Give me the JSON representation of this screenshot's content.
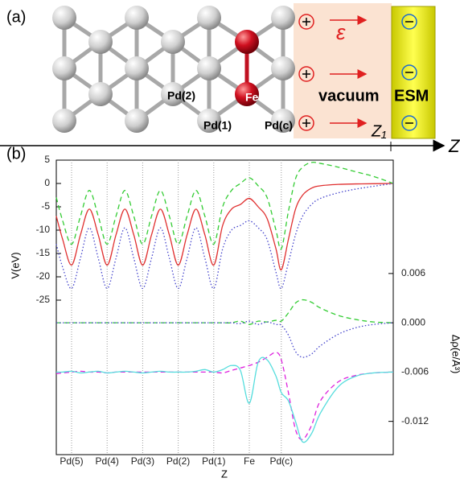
{
  "panel_a": {
    "label": "(a)",
    "pd2": "Pd(2)",
    "fe": "Fe",
    "pd1": "Pd(1)",
    "pdc": "Pd(c)",
    "vacuum": "vacuum",
    "esm": "ESM",
    "epsilon": "ε",
    "z1": "Z₁",
    "z_axis": "Z"
  },
  "chart_data": {
    "type": "line",
    "panel_label": "(b)",
    "x_label": "Z",
    "y_label": "V(eV)",
    "y2_label": "Δρ(e/Å³)",
    "x": [
      -0.43,
      -0.25,
      0,
      0.25,
      0.5,
      0.75,
      1,
      1.25,
      1.5,
      1.75,
      2,
      2.25,
      2.5,
      2.75,
      3,
      3.25,
      3.5,
      3.75,
      4,
      4.25,
      4.5,
      4.75,
      5,
      5.25,
      5.5,
      5.75,
      5.9,
      6.1,
      6.3,
      6.5,
      6.75,
      7,
      7.5,
      8,
      8.5,
      9.05
    ],
    "xlim": [
      -0.43,
      9.05
    ],
    "xticks": [
      {
        "value": 0,
        "label": "Pd(5)"
      },
      {
        "value": 1,
        "label": "Pd(4)"
      },
      {
        "value": 2,
        "label": "Pd(3)"
      },
      {
        "value": 3,
        "label": "Pd(2)"
      },
      {
        "value": 4,
        "label": "Pd(1)"
      },
      {
        "value": 5,
        "label": "Fe"
      },
      {
        "value": 5.9,
        "label": "Pd(c)"
      }
    ],
    "ylim": [
      -58.1,
      5
    ],
    "yticks": [
      5,
      0,
      -5,
      -10,
      -15,
      -20,
      -25
    ],
    "y2lim": [
      -0.01605,
      0.0198
    ],
    "y2ticks": [
      {
        "value": 0.006,
        "label": "0.006"
      },
      {
        "value": 0,
        "label": "0.000"
      },
      {
        "value": -0.006,
        "label": "-0.006"
      },
      {
        "value": -0.012,
        "label": "-0.012"
      }
    ],
    "grid": true,
    "series": [
      {
        "color": "#e03030",
        "dash": "none",
        "values": [
          -7,
          -12,
          -17.5,
          -11,
          -5.5,
          -11,
          -17.5,
          -11,
          -5.5,
          -11,
          -17.5,
          -11,
          -5.5,
          -11,
          -17.5,
          -11,
          -5.5,
          -11,
          -17.5,
          -9,
          -5.5,
          -4.5,
          -3.2,
          -5,
          -7.5,
          -14,
          -18.5,
          -12,
          -5.5,
          -2.5,
          -1,
          -0.5,
          -0.2,
          -0.1,
          -0.05,
          0
        ]
      },
      {
        "color": "#33cc33",
        "dash": "6 4",
        "values": [
          -3,
          -8,
          -13,
          -7,
          -1.5,
          -7,
          -13,
          -7,
          -1.5,
          -7,
          -13,
          -7,
          -1.5,
          -7,
          -13,
          -7,
          -1.5,
          -7,
          -13,
          -5,
          -1.5,
          0,
          1.2,
          -0.5,
          -3,
          -10,
          -14,
          -6,
          1,
          3.5,
          4.5,
          4.3,
          3.5,
          2.5,
          1.5,
          0
        ]
      },
      {
        "color": "#4444cc",
        "dash": "1.5 2.5",
        "values": [
          -13,
          -18,
          -22.5,
          -16,
          -9.5,
          -16,
          -22.5,
          -16,
          -9.5,
          -16,
          -22.5,
          -16,
          -9.5,
          -16,
          -22.5,
          -16,
          -9.5,
          -16,
          -22.5,
          -14,
          -10,
          -9,
          -8,
          -9.5,
          -12,
          -19,
          -22.5,
          -17,
          -11,
          -7,
          -4.5,
          -3.2,
          -2,
          -1.2,
          -0.6,
          0
        ]
      },
      {
        "color": "#33cc33",
        "dash": "6 4",
        "axis": "y2",
        "values": [
          0,
          0,
          0,
          0,
          0,
          0,
          0,
          0,
          0,
          0,
          0,
          0,
          0,
          0,
          0,
          0,
          0,
          0,
          0,
          0,
          0,
          0.0002,
          -0.0002,
          0.0002,
          0.0001,
          0.0003,
          0.0002,
          0.0012,
          0.0024,
          0.0028,
          0.0025,
          0.0018,
          0.0009,
          0.0004,
          0.0001,
          0
        ]
      },
      {
        "color": "#4444cc",
        "dash": "1.5 2.5",
        "axis": "y2",
        "values": [
          0,
          0,
          0,
          0,
          0,
          0,
          0,
          0,
          0,
          0,
          0,
          0,
          0,
          0,
          0,
          0,
          0,
          0,
          0,
          0,
          0,
          -0.0001,
          0.0002,
          -0.0002,
          0.0001,
          -0.0002,
          -0.0003,
          -0.0015,
          -0.0035,
          -0.0042,
          -0.0038,
          -0.0028,
          -0.0014,
          -0.0006,
          -0.0002,
          0
        ]
      },
      {
        "color": "#dd22dd",
        "dash": "6 4",
        "axis": "y2",
        "values": [
          -0.0062,
          -0.0061,
          -0.006,
          -0.0059,
          -0.006,
          -0.006,
          -0.0061,
          -0.006,
          -0.006,
          -0.006,
          -0.006,
          -0.006,
          -0.006,
          -0.006,
          -0.006,
          -0.006,
          -0.006,
          -0.006,
          -0.006,
          -0.0061,
          -0.0058,
          -0.0055,
          -0.0052,
          -0.0048,
          -0.0042,
          -0.0036,
          -0.0045,
          -0.0085,
          -0.013,
          -0.0142,
          -0.0125,
          -0.0095,
          -0.0072,
          -0.0064,
          -0.0061,
          -0.006
        ]
      },
      {
        "color": "#55dddd",
        "dash": "none",
        "axis": "y2",
        "values": [
          -0.006,
          -0.006,
          -0.0059,
          -0.0061,
          -0.006,
          -0.0059,
          -0.0061,
          -0.006,
          -0.0059,
          -0.006,
          -0.0061,
          -0.006,
          -0.0059,
          -0.006,
          -0.006,
          -0.006,
          -0.0059,
          -0.0057,
          -0.006,
          -0.0057,
          -0.0052,
          -0.0058,
          -0.0098,
          -0.0048,
          -0.0045,
          -0.0065,
          -0.0085,
          -0.0095,
          -0.012,
          -0.0145,
          -0.0135,
          -0.011,
          -0.0078,
          -0.0065,
          -0.0061,
          -0.006
        ]
      }
    ]
  }
}
